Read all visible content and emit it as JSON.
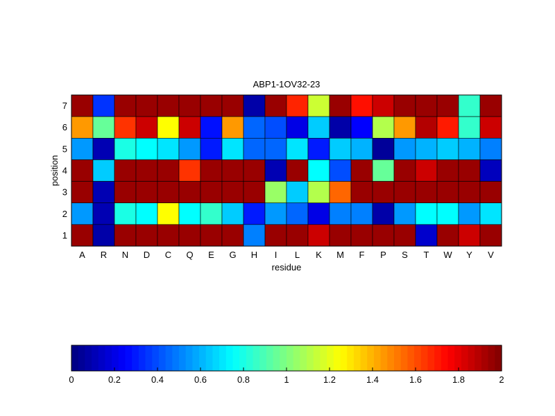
{
  "chart_data": [
    {
      "type": "heatmap",
      "title": "ABP1-1OV32-23",
      "xlabel": "residue",
      "ylabel": "position",
      "x": [
        "A",
        "R",
        "N",
        "D",
        "C",
        "Q",
        "E",
        "G",
        "H",
        "I",
        "L",
        "K",
        "M",
        "F",
        "P",
        "S",
        "T",
        "W",
        "Y",
        "V"
      ],
      "y": [
        7,
        6,
        5,
        4,
        3,
        2,
        1
      ],
      "y_ticks": [
        "1",
        "2",
        "3",
        "4",
        "5",
        "6",
        "7"
      ],
      "colormap": "jet",
      "clim": [
        0,
        2
      ],
      "values": [
        [
          1.95,
          0.35,
          1.95,
          1.95,
          1.95,
          1.95,
          1.95,
          1.95,
          0.08,
          1.95,
          1.68,
          1.15,
          1.95,
          1.72,
          1.85,
          1.95,
          1.95,
          1.95,
          0.85,
          1.95
        ],
        [
          1.45,
          0.95,
          1.65,
          1.85,
          1.25,
          1.85,
          0.28,
          1.45,
          0.45,
          0.4,
          0.2,
          0.65,
          0.08,
          0.25,
          1.1,
          1.45,
          1.9,
          1.7,
          0.85,
          1.85
        ],
        [
          0.55,
          0.1,
          0.8,
          0.75,
          0.7,
          0.55,
          0.3,
          0.7,
          0.45,
          0.45,
          0.7,
          0.3,
          0.65,
          0.6,
          0.05,
          0.55,
          0.6,
          0.65,
          0.6,
          0.5
        ],
        [
          1.95,
          0.65,
          1.95,
          1.95,
          1.95,
          1.65,
          1.95,
          1.95,
          1.95,
          0.1,
          1.95,
          0.75,
          0.4,
          1.95,
          0.95,
          1.95,
          1.85,
          1.95,
          1.95,
          0.12
        ],
        [
          1.95,
          0.1,
          1.95,
          1.95,
          1.95,
          1.95,
          1.95,
          1.95,
          1.95,
          1.05,
          0.65,
          1.1,
          1.55,
          1.95,
          1.95,
          1.95,
          1.95,
          1.95,
          1.95,
          1.95
        ],
        [
          0.55,
          0.1,
          0.8,
          0.75,
          1.25,
          0.75,
          0.85,
          0.65,
          0.3,
          0.55,
          0.45,
          0.2,
          0.5,
          0.5,
          0.08,
          0.55,
          0.75,
          0.75,
          0.55,
          0.7
        ],
        [
          1.95,
          0.08,
          1.95,
          1.95,
          1.95,
          1.95,
          1.95,
          1.95,
          0.5,
          1.95,
          1.95,
          1.85,
          1.95,
          1.95,
          1.95,
          1.95,
          0.15,
          1.95,
          1.85,
          1.95
        ]
      ]
    },
    {
      "type": "colorbar",
      "colormap": "jet",
      "range": [
        0,
        2
      ],
      "ticks": [
        "0",
        "0.2",
        "0.4",
        "0.6",
        "0.8",
        "1",
        "1.2",
        "1.4",
        "1.6",
        "1.8",
        "2"
      ]
    }
  ]
}
